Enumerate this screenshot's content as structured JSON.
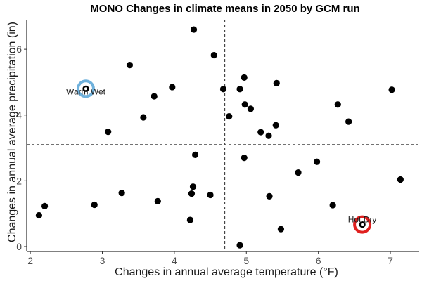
{
  "chart_data": {
    "type": "scatter",
    "title": "MONO Changes in climate means in 2050 by GCM run",
    "xlabel": "Changes in annual average temperature (°F)",
    "ylabel": "Changes in annual average precipitation (in)",
    "xlim": [
      1.95,
      7.4
    ],
    "ylim": [
      -0.15,
      6.9
    ],
    "x_ticks": [
      "2",
      "3",
      "4",
      "5",
      "6",
      "7"
    ],
    "y_ticks": [
      "0",
      "2",
      "4",
      "6"
    ],
    "ref_lines": {
      "x": 4.7,
      "y": 3.1
    },
    "points": [
      {
        "x": 4.27,
        "y": 6.6
      },
      {
        "x": 4.55,
        "y": 5.82
      },
      {
        "x": 3.38,
        "y": 5.52
      },
      {
        "x": 4.97,
        "y": 5.14
      },
      {
        "x": 5.42,
        "y": 4.97
      },
      {
        "x": 3.97,
        "y": 4.85
      },
      {
        "x": 4.68,
        "y": 4.79
      },
      {
        "x": 4.91,
        "y": 4.79
      },
      {
        "x": 7.02,
        "y": 4.77
      },
      {
        "x": 3.72,
        "y": 4.57
      },
      {
        "x": 4.98,
        "y": 4.32
      },
      {
        "x": 6.27,
        "y": 4.32
      },
      {
        "x": 5.06,
        "y": 4.19
      },
      {
        "x": 4.76,
        "y": 3.96
      },
      {
        "x": 3.57,
        "y": 3.93
      },
      {
        "x": 6.42,
        "y": 3.8
      },
      {
        "x": 5.41,
        "y": 3.69
      },
      {
        "x": 3.08,
        "y": 3.49
      },
      {
        "x": 5.2,
        "y": 3.48
      },
      {
        "x": 5.31,
        "y": 3.37
      },
      {
        "x": 4.29,
        "y": 2.79
      },
      {
        "x": 4.97,
        "y": 2.7
      },
      {
        "x": 5.98,
        "y": 2.58
      },
      {
        "x": 5.72,
        "y": 2.25
      },
      {
        "x": 7.14,
        "y": 2.04
      },
      {
        "x": 4.26,
        "y": 1.82
      },
      {
        "x": 3.27,
        "y": 1.63
      },
      {
        "x": 4.24,
        "y": 1.61
      },
      {
        "x": 4.5,
        "y": 1.57
      },
      {
        "x": 5.32,
        "y": 1.53
      },
      {
        "x": 3.77,
        "y": 1.38
      },
      {
        "x": 2.89,
        "y": 1.27
      },
      {
        "x": 6.2,
        "y": 1.26
      },
      {
        "x": 2.2,
        "y": 1.23
      },
      {
        "x": 2.12,
        "y": 0.95
      },
      {
        "x": 4.22,
        "y": 0.81
      },
      {
        "x": 5.48,
        "y": 0.53
      },
      {
        "x": 4.91,
        "y": 0.04
      }
    ],
    "highlights": [
      {
        "label": "Warm Wet",
        "x": 2.77,
        "y": 4.8,
        "color": "#6fb1dc"
      },
      {
        "label": "Hot Dry",
        "x": 6.61,
        "y": 0.67,
        "color": "#e0201f"
      }
    ]
  }
}
